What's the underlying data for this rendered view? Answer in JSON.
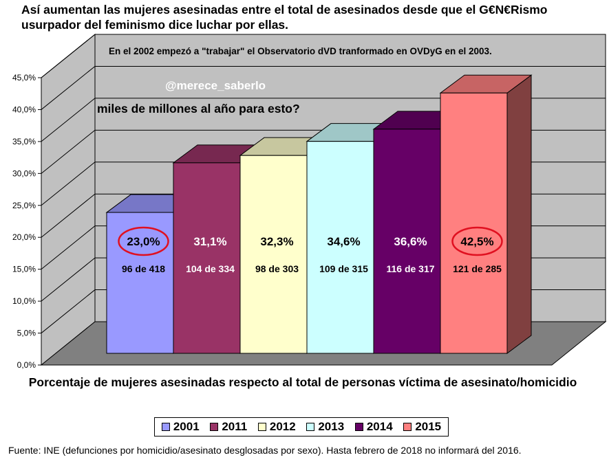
{
  "title": "Así aumentan las mujeres asesinadas entre el total de asesinados desde que el G€N€Rismo\nusurpador del feminismo dice luchar por ellas.",
  "annotations": {
    "note": "En el 2002 empezó a \"trabajar\" el Observatorio dVD tranformado en OVDyG en el 2003.",
    "handle": "@merece_saberlo",
    "question": "miles de millones al año para esto?"
  },
  "xcaption": "Porcentaje de mujeres asesinadas respecto al total de personas víctima de asesinato/homicidio",
  "source": "Fuente: INE (defunciones por homicidio/asesinato desglosadas por sexo). Hasta febrero de 2018 no informará del 2016.",
  "colors": {
    "wall": "#c0c0c0",
    "floor": "#808080",
    "circle": "#e01020"
  },
  "chart_data": {
    "type": "bar",
    "title": "Así aumentan las mujeres asesinadas entre el total de asesinados desde que el G€N€Rismo usurpador del feminismo dice luchar por ellas.",
    "xlabel": "Porcentaje de mujeres asesinadas respecto al total de personas víctima de asesinato/homicidio",
    "ylabel": "",
    "ylim": [
      0,
      45
    ],
    "yticks": [
      "0,0%",
      "5,0%",
      "10,0%",
      "15,0%",
      "20,0%",
      "25,0%",
      "30,0%",
      "35,0%",
      "40,0%",
      "45,0%"
    ],
    "categories": [
      "2001",
      "2011",
      "2012",
      "2013",
      "2014",
      "2015"
    ],
    "values": [
      23.0,
      31.1,
      32.3,
      34.6,
      36.6,
      42.5
    ],
    "value_labels": [
      "23,0%",
      "31,1%",
      "32,3%",
      "34,6%",
      "36,6%",
      "42,5%"
    ],
    "count_labels": [
      "96 de 418",
      "104 de 334",
      "98 de 303",
      "109 de 315",
      "116 de 317",
      "121 de 285"
    ],
    "bar_colors": [
      "#9999ff",
      "#993366",
      "#ffffcc",
      "#ccffff",
      "#660066",
      "#ff8080"
    ],
    "label_colors": [
      "#000000",
      "#ffffff",
      "#000000",
      "#000000",
      "#ffffff",
      "#000000"
    ],
    "circled": [
      true,
      false,
      false,
      false,
      false,
      true
    ],
    "legend": [
      "2001",
      "2011",
      "2012",
      "2013",
      "2014",
      "2015"
    ],
    "legend_position": "bottom",
    "grid": true
  }
}
